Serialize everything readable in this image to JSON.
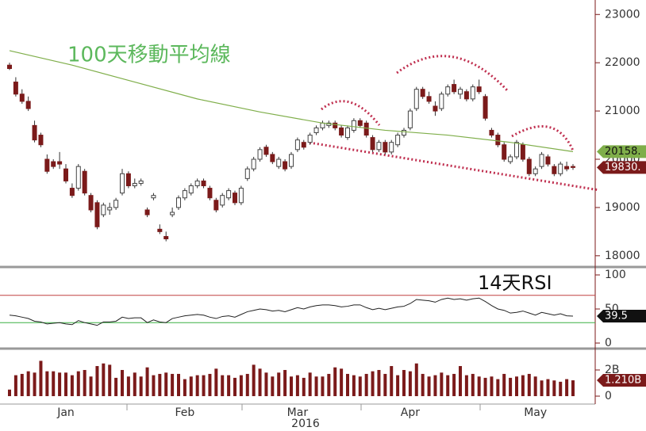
{
  "chart_data": {
    "type": "candlestick",
    "annotation": "100天移動平均線",
    "year_label": "2016",
    "categories": [
      null,
      null,
      null,
      null,
      null,
      null,
      null,
      null,
      null,
      "Jan",
      null,
      null,
      null,
      null,
      null,
      null,
      null,
      null,
      null,
      null,
      null,
      null,
      null,
      null,
      null,
      null,
      null,
      null,
      "Feb",
      null,
      null,
      null,
      null,
      null,
      null,
      null,
      null,
      null,
      null,
      null,
      null,
      null,
      null,
      null,
      null,
      null,
      "Mar",
      null,
      null,
      null,
      null,
      null,
      null,
      null,
      null,
      null,
      null,
      null,
      null,
      null,
      null,
      null,
      null,
      null,
      "Apr",
      null,
      null,
      null,
      null,
      null,
      null,
      null,
      null,
      null,
      null,
      null,
      null,
      null,
      null,
      null,
      null,
      null,
      null,
      null,
      "May",
      null,
      null,
      null,
      null,
      null
    ],
    "ohlc": [
      [
        21950,
        22000,
        21850,
        21880
      ],
      [
        21600,
        21700,
        21300,
        21350
      ],
      [
        21350,
        21450,
        21150,
        21200
      ],
      [
        21200,
        21300,
        21000,
        21050
      ],
      [
        20700,
        20800,
        20350,
        20400
      ],
      [
        20500,
        20550,
        20250,
        20300
      ],
      [
        20000,
        20100,
        19700,
        19750
      ],
      [
        19950,
        20000,
        19800,
        19850
      ],
      [
        19950,
        20150,
        19800,
        19900
      ],
      [
        19800,
        19900,
        19500,
        19550
      ],
      [
        19400,
        19500,
        19200,
        19250
      ],
      [
        19400,
        19900,
        19350,
        19850
      ],
      [
        19750,
        19800,
        19250,
        19300
      ],
      [
        19250,
        19300,
        18900,
        18950
      ],
      [
        19100,
        19150,
        18550,
        18600
      ],
      [
        18850,
        19100,
        18800,
        19050
      ],
      [
        18950,
        19100,
        18850,
        19000
      ],
      [
        19000,
        19200,
        18950,
        19150
      ],
      [
        19300,
        19800,
        19250,
        19700
      ],
      [
        19700,
        19750,
        19400,
        19450
      ],
      [
        19450,
        19600,
        19400,
        19500
      ],
      [
        19500,
        19600,
        19450,
        19550
      ],
      [
        18950,
        19000,
        18800,
        18850
      ],
      [
        19200,
        19300,
        19150,
        19250
      ],
      [
        18550,
        18650,
        18450,
        18500
      ],
      [
        18400,
        18500,
        18300,
        18350
      ],
      [
        18850,
        19000,
        18800,
        18900
      ],
      [
        19000,
        19250,
        18950,
        19200
      ],
      [
        19200,
        19400,
        19150,
        19350
      ],
      [
        19300,
        19500,
        19250,
        19450
      ],
      [
        19450,
        19600,
        19400,
        19550
      ],
      [
        19550,
        19600,
        19400,
        19450
      ],
      [
        19400,
        19450,
        19150,
        19200
      ],
      [
        19150,
        19200,
        18900,
        18950
      ],
      [
        19050,
        19300,
        19000,
        19250
      ],
      [
        19200,
        19400,
        19150,
        19350
      ],
      [
        19300,
        19350,
        19050,
        19100
      ],
      [
        19100,
        19450,
        19050,
        19400
      ],
      [
        19600,
        19850,
        19550,
        19800
      ],
      [
        19800,
        20050,
        19750,
        20000
      ],
      [
        20000,
        20250,
        19950,
        20200
      ],
      [
        20250,
        20300,
        20050,
        20100
      ],
      [
        20100,
        20150,
        19900,
        19950
      ],
      [
        19850,
        20050,
        19800,
        20000
      ],
      [
        19950,
        20000,
        19750,
        19800
      ],
      [
        19850,
        20150,
        19800,
        20100
      ],
      [
        20200,
        20450,
        20150,
        20400
      ],
      [
        20350,
        20400,
        20200,
        20250
      ],
      [
        20350,
        20550,
        20300,
        20500
      ],
      [
        20550,
        20700,
        20500,
        20650
      ],
      [
        20650,
        20800,
        20600,
        20750
      ],
      [
        20700,
        20800,
        20650,
        20750
      ],
      [
        20750,
        20800,
        20600,
        20650
      ],
      [
        20650,
        20700,
        20450,
        20500
      ],
      [
        20450,
        20700,
        20400,
        20650
      ],
      [
        20600,
        20850,
        20550,
        20800
      ],
      [
        20800,
        20850,
        20650,
        20700
      ],
      [
        20750,
        20800,
        20450,
        20500
      ],
      [
        20450,
        20500,
        20150,
        20200
      ],
      [
        20200,
        20400,
        20150,
        20350
      ],
      [
        20350,
        20400,
        20100,
        20150
      ],
      [
        20150,
        20400,
        20100,
        20350
      ],
      [
        20300,
        20550,
        20250,
        20500
      ],
      [
        20500,
        20650,
        20450,
        20600
      ],
      [
        20650,
        21050,
        20600,
        21000
      ],
      [
        21050,
        21500,
        21000,
        21450
      ],
      [
        21450,
        21500,
        21250,
        21300
      ],
      [
        21300,
        21400,
        21150,
        21200
      ],
      [
        21100,
        21200,
        20900,
        21000
      ],
      [
        21050,
        21400,
        21000,
        21350
      ],
      [
        21350,
        21550,
        21300,
        21500
      ],
      [
        21550,
        21650,
        21350,
        21400
      ],
      [
        21350,
        21500,
        21250,
        21450
      ],
      [
        21400,
        21450,
        21200,
        21250
      ],
      [
        21250,
        21550,
        21200,
        21500
      ],
      [
        21500,
        21650,
        21350,
        21400
      ],
      [
        21300,
        21350,
        20800,
        20850
      ],
      [
        20600,
        20650,
        20450,
        20500
      ],
      [
        20500,
        20550,
        20250,
        20300
      ],
      [
        20300,
        20350,
        19950,
        20000
      ],
      [
        19950,
        20100,
        19900,
        20050
      ],
      [
        20050,
        20400,
        20000,
        20350
      ],
      [
        20300,
        20350,
        19950,
        20000
      ],
      [
        20000,
        20050,
        19650,
        19700
      ],
      [
        19700,
        19850,
        19650,
        19800
      ],
      [
        19850,
        20150,
        19800,
        20100
      ],
      [
        20050,
        20100,
        19850,
        19900
      ],
      [
        19850,
        19900,
        19650,
        19700
      ],
      [
        19700,
        19950,
        19650,
        19900
      ],
      [
        19850,
        19950,
        19750,
        19800
      ],
      [
        19850,
        19900,
        19780,
        19830
      ]
    ],
    "up_color": "#ffffff",
    "down_color": "#7b1a1a",
    "last": {
      "value": 19830,
      "label": "19830."
    },
    "ylim": [
      17800,
      23300
    ],
    "yticks": [
      18000,
      19000,
      20000,
      21000,
      22000,
      23000
    ],
    "ma": {
      "color": "#7fae4a",
      "x": [
        0,
        10,
        20,
        30,
        40,
        50,
        60,
        70,
        80,
        90
      ],
      "values": [
        22250,
        21950,
        21600,
        21250,
        20980,
        20750,
        20600,
        20500,
        20350,
        20158
      ],
      "last": {
        "value": 20158,
        "label": "20158."
      }
    },
    "rsi": {
      "title": "14天RSI",
      "color": "#222222",
      "ylim": [
        0,
        100
      ],
      "yticks": [
        0,
        50,
        100
      ],
      "upper": 70,
      "lower": 30,
      "values": [
        41,
        40,
        38,
        36,
        32,
        31,
        28,
        29,
        30,
        28,
        27,
        33,
        30,
        28,
        26,
        31,
        31,
        32,
        38,
        36,
        37,
        37,
        30,
        34,
        31,
        30,
        36,
        38,
        40,
        41,
        42,
        41,
        38,
        36,
        39,
        40,
        38,
        42,
        46,
        48,
        50,
        49,
        47,
        48,
        46,
        49,
        52,
        50,
        53,
        55,
        56,
        56,
        55,
        53,
        54,
        56,
        56,
        52,
        49,
        51,
        49,
        51,
        53,
        54,
        58,
        64,
        63,
        62,
        60,
        64,
        66,
        64,
        65,
        63,
        65,
        66,
        61,
        55,
        50,
        48,
        44,
        45,
        47,
        44,
        41,
        45,
        43,
        41,
        43,
        40,
        39.5
      ],
      "last": 39.5
    },
    "volume": {
      "color": "#7b1a1a",
      "ylim": [
        0,
        3.15
      ],
      "yticks": [
        0,
        {
          "value": 2,
          "label": "2B"
        }
      ],
      "values": [
        0.5,
        1.6,
        1.7,
        1.9,
        1.8,
        2.7,
        1.9,
        1.9,
        1.8,
        1.8,
        1.6,
        1.9,
        2.0,
        1.5,
        2.3,
        2.5,
        2.4,
        1.4,
        2.0,
        1.5,
        1.8,
        1.5,
        2.2,
        1.6,
        1.7,
        1.8,
        1.7,
        1.7,
        1.3,
        1.5,
        1.6,
        1.6,
        1.7,
        2.1,
        1.6,
        1.6,
        1.4,
        1.6,
        1.7,
        2.4,
        2.1,
        1.8,
        1.5,
        1.8,
        2.0,
        1.5,
        1.6,
        1.4,
        1.8,
        1.5,
        1.5,
        1.7,
        2.2,
        2.1,
        1.7,
        1.6,
        1.5,
        1.7,
        1.9,
        2.0,
        1.7,
        2.3,
        1.6,
        2.0,
        1.9,
        2.5,
        1.7,
        1.5,
        1.6,
        1.8,
        1.6,
        1.7,
        2.3,
        1.6,
        1.7,
        1.5,
        1.4,
        1.5,
        1.3,
        1.7,
        1.4,
        1.5,
        1.6,
        1.7,
        1.5,
        1.2,
        1.3,
        1.2,
        1.1,
        1.3,
        1.21
      ],
      "last": {
        "value": 1.21,
        "label": "1.210B"
      }
    }
  }
}
